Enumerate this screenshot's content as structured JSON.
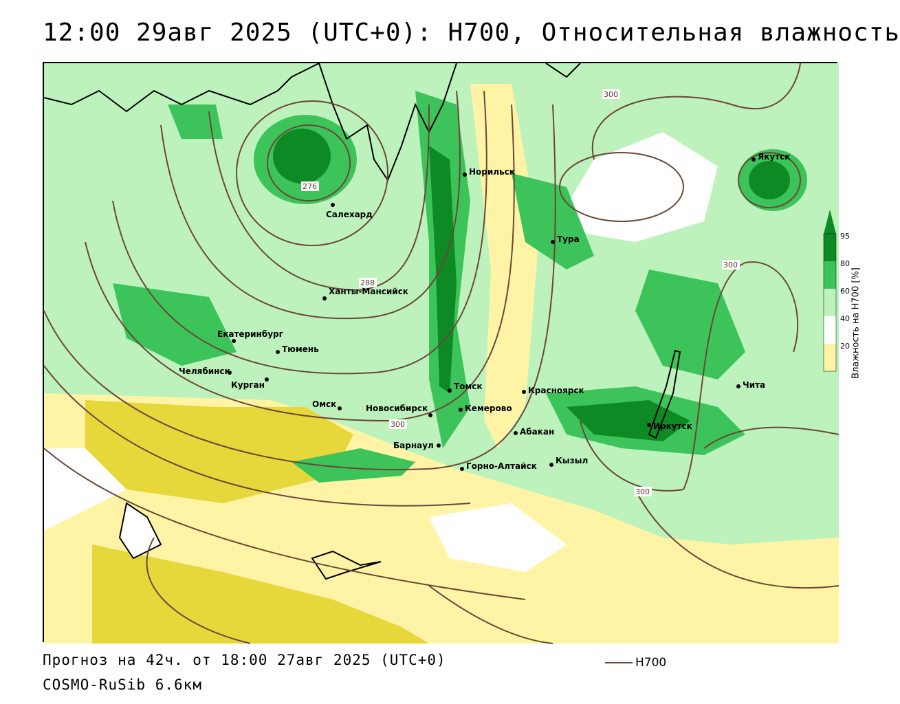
{
  "title": "12:00 29авг 2025 (UTC+0): H700, Относительная влажность",
  "footer": {
    "forecast": "Прогноз на 42ч. от 18:00 27авг 2025 (UTC+0)",
    "model": "COSMO-RuSib 6.6км"
  },
  "legend": {
    "axis_title": "Влажность на H700 [%]",
    "ticks": [
      "95",
      "80",
      "60",
      "40",
      "20"
    ],
    "colors": {
      "c95": "#0e8a25",
      "c80": "#3cc45a",
      "c60": "#bdf2bd",
      "c40": "#ffffff",
      "c20": "#fff4a6",
      "c0": "#e6d83a"
    }
  },
  "line_legend": {
    "label": "H700",
    "color": "#6b4638"
  },
  "cities": [
    {
      "name": "Салехард"
    },
    {
      "name": "Норильск"
    },
    {
      "name": "Якутск"
    },
    {
      "name": "Тура"
    },
    {
      "name": "Ханты-Мансийск"
    },
    {
      "name": "Екатеринбург"
    },
    {
      "name": "Тюмень"
    },
    {
      "name": "Челябинск"
    },
    {
      "name": "Курган"
    },
    {
      "name": "Омск"
    },
    {
      "name": "Новосибирск"
    },
    {
      "name": "Томск"
    },
    {
      "name": "Кемерово"
    },
    {
      "name": "Красноярск"
    },
    {
      "name": "Абакан"
    },
    {
      "name": "Барнаул"
    },
    {
      "name": "Горно-Алтайск"
    },
    {
      "name": "Кызыл"
    },
    {
      "name": "Иркутск"
    },
    {
      "name": "Чита"
    }
  ],
  "contour_labels": [
    "276",
    "288",
    "300",
    "300",
    "300",
    "300"
  ]
}
